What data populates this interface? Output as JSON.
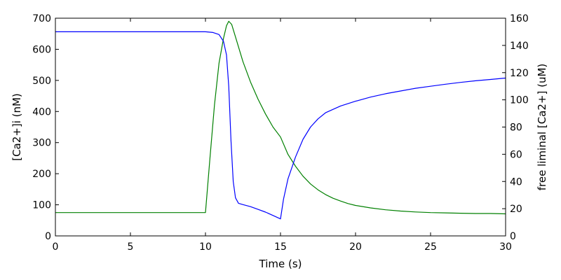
{
  "chart_data": {
    "type": "line",
    "xlabel": "Time (s)",
    "ylabel_left": "[Ca2+]i (nM)",
    "ylabel_right": "free liminal [Ca2+] (uM)",
    "xlim": [
      0,
      30
    ],
    "ylim_left": [
      0,
      700
    ],
    "ylim_right": [
      0,
      160
    ],
    "x_ticks": [
      "0",
      "5",
      "10",
      "15",
      "20",
      "25",
      "30"
    ],
    "y_ticks_left": [
      "0",
      "100",
      "200",
      "300",
      "400",
      "500",
      "600",
      "700"
    ],
    "y_ticks_right": [
      "0",
      "20",
      "40",
      "60",
      "80",
      "100",
      "120",
      "140",
      "160"
    ],
    "grid": false,
    "series": [
      {
        "axis": "left",
        "color": "#008000",
        "points": [
          [
            0,
            75
          ],
          [
            9.5,
            75
          ],
          [
            10,
            75
          ],
          [
            10.3,
            250
          ],
          [
            10.6,
            420
          ],
          [
            10.9,
            555
          ],
          [
            11.2,
            635
          ],
          [
            11.4,
            676
          ],
          [
            11.55,
            690
          ],
          [
            11.75,
            680
          ],
          [
            12,
            640
          ],
          [
            12.5,
            560
          ],
          [
            13,
            495
          ],
          [
            13.5,
            440
          ],
          [
            14,
            392
          ],
          [
            14.5,
            350
          ],
          [
            15,
            318
          ],
          [
            15.5,
            262
          ],
          [
            16,
            224
          ],
          [
            16.5,
            192
          ],
          [
            17,
            167
          ],
          [
            17.5,
            148
          ],
          [
            18,
            133
          ],
          [
            18.5,
            121
          ],
          [
            19,
            112
          ],
          [
            19.5,
            104
          ],
          [
            20,
            98
          ],
          [
            21,
            90
          ],
          [
            22,
            84
          ],
          [
            23,
            80
          ],
          [
            24,
            77
          ],
          [
            25,
            75
          ],
          [
            26,
            74
          ],
          [
            27,
            73
          ],
          [
            28,
            72
          ],
          [
            29,
            72
          ],
          [
            30,
            71
          ]
        ]
      },
      {
        "axis": "right",
        "color": "#0000ff",
        "points": [
          [
            0,
            150
          ],
          [
            10,
            150
          ],
          [
            10.5,
            149.5
          ],
          [
            10.9,
            148
          ],
          [
            11.2,
            143
          ],
          [
            11.4,
            133
          ],
          [
            11.55,
            110
          ],
          [
            11.7,
            70
          ],
          [
            11.85,
            40
          ],
          [
            12,
            28
          ],
          [
            12.2,
            24
          ],
          [
            12.5,
            23
          ],
          [
            13,
            21.5
          ],
          [
            13.5,
            19.5
          ],
          [
            14,
            17.5
          ],
          [
            14.5,
            15
          ],
          [
            15,
            12.5
          ],
          [
            15.2,
            27
          ],
          [
            15.5,
            42
          ],
          [
            16,
            58
          ],
          [
            16.5,
            71
          ],
          [
            17,
            80
          ],
          [
            17.5,
            86
          ],
          [
            18,
            90.5
          ],
          [
            19,
            95.5
          ],
          [
            20,
            99
          ],
          [
            21,
            102
          ],
          [
            22,
            104.5
          ],
          [
            23,
            106.5
          ],
          [
            24,
            108.5
          ],
          [
            25,
            110
          ],
          [
            26,
            111.5
          ],
          [
            27,
            112.8
          ],
          [
            28,
            114
          ],
          [
            29,
            115
          ],
          [
            30,
            116
          ]
        ]
      }
    ]
  }
}
